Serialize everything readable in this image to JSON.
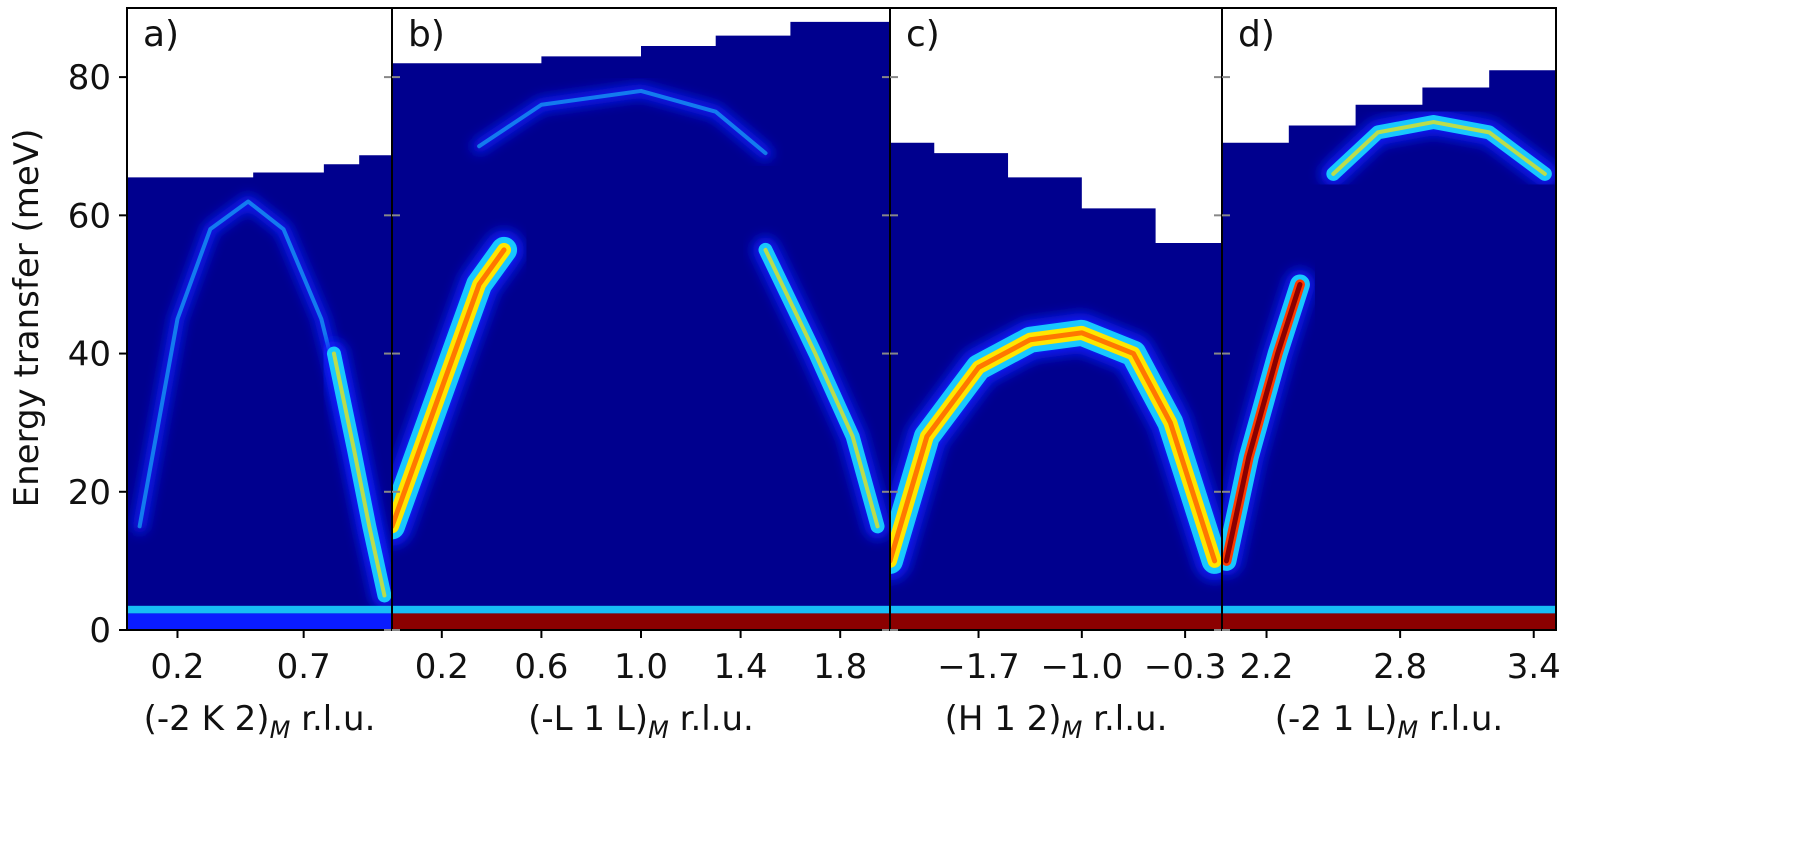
{
  "chart_data": {
    "type": "heatmap",
    "ylabel": "Energy transfer (meV)",
    "ylim": [
      0,
      90
    ],
    "yticks": [
      "0",
      "20",
      "40",
      "60",
      "80"
    ],
    "ytick_values": [
      0,
      20,
      40,
      60,
      80
    ],
    "colors": {
      "background": "#00008e",
      "low": "#0a1cff",
      "mid": "#19d2ff",
      "high": "#ffe600",
      "max": "#8b0000"
    },
    "panels": [
      {
        "label": "a)",
        "xlabel": "(-2 K 2)",
        "xlabel_sub": "M",
        "xlabel_unit": " r.l.u.",
        "xlim": [
          0.0,
          1.05
        ],
        "xticks": [
          "0.2",
          "0.7"
        ],
        "xtick_values": [
          0.2,
          0.7
        ],
        "coverage": [
          [
            0.0,
            65.5
          ],
          [
            0.2,
            65.5
          ],
          [
            0.5,
            66.2
          ],
          [
            0.78,
            67.4
          ],
          [
            0.92,
            68.7
          ],
          [
            1.05,
            69.0
          ]
        ],
        "arcs": [
          {
            "points": [
              [
                0.05,
                15
              ],
              [
                0.2,
                45
              ],
              [
                0.33,
                58
              ],
              [
                0.48,
                62
              ],
              [
                0.62,
                58
              ],
              [
                0.77,
                45
              ],
              [
                0.9,
                26
              ],
              [
                1.0,
                10
              ]
            ],
            "intensity": "low"
          },
          {
            "points": [
              [
                0.82,
                40
              ],
              [
                0.9,
                26
              ],
              [
                0.96,
                15
              ],
              [
                1.02,
                5
              ]
            ],
            "intensity": "mid"
          }
        ]
      },
      {
        "label": "b)",
        "xlabel": "(-L 1 L)",
        "xlabel_sub": "M",
        "xlabel_unit": " r.l.u.",
        "xlim": [
          0.0,
          2.0
        ],
        "xticks": [
          "0.2",
          "0.6",
          "1.0",
          "1.4",
          "1.8"
        ],
        "xtick_values": [
          0.2,
          0.6,
          1.0,
          1.4,
          1.8
        ],
        "coverage": [
          [
            0.0,
            82
          ],
          [
            0.3,
            82
          ],
          [
            0.6,
            83
          ],
          [
            1.0,
            84.5
          ],
          [
            1.3,
            86
          ],
          [
            1.6,
            88
          ],
          [
            2.0,
            89
          ]
        ],
        "arcs": [
          {
            "points": [
              [
                0.0,
                15
              ],
              [
                0.2,
                35
              ],
              [
                0.35,
                50
              ],
              [
                0.45,
                55
              ]
            ],
            "intensity": "high"
          },
          {
            "points": [
              [
                0.35,
                70
              ],
              [
                0.6,
                76
              ],
              [
                1.0,
                78
              ],
              [
                1.3,
                75
              ],
              [
                1.5,
                69
              ]
            ],
            "intensity": "low"
          },
          {
            "points": [
              [
                1.5,
                55
              ],
              [
                1.7,
                40
              ],
              [
                1.85,
                28
              ],
              [
                1.95,
                15
              ]
            ],
            "intensity": "mid"
          }
        ]
      },
      {
        "label": "c)",
        "xlabel": "(H 1 2)",
        "xlabel_sub": "M",
        "xlabel_unit": " r.l.u.",
        "xlim": [
          -2.3,
          -0.05
        ],
        "xticks": [
          "−1.7",
          "−1.0",
          "−0.3"
        ],
        "xtick_values": [
          -1.7,
          -1.0,
          -0.3
        ],
        "coverage": [
          [
            -2.3,
            70.5
          ],
          [
            -2.0,
            69
          ],
          [
            -1.5,
            65.5
          ],
          [
            -1.0,
            61
          ],
          [
            -0.5,
            56
          ],
          [
            -0.05,
            52
          ]
        ],
        "arcs": [
          {
            "points": [
              [
                -2.3,
                10
              ],
              [
                -2.05,
                28
              ],
              [
                -1.7,
                38
              ],
              [
                -1.35,
                42
              ],
              [
                -1.0,
                43
              ],
              [
                -0.65,
                40
              ],
              [
                -0.4,
                30
              ],
              [
                -0.1,
                10
              ]
            ],
            "intensity": "high"
          }
        ]
      },
      {
        "label": "d)",
        "xlabel": "(-2 1 L)",
        "xlabel_sub": "M",
        "xlabel_unit": " r.l.u.",
        "xlim": [
          2.0,
          3.5
        ],
        "xticks": [
          "2.2",
          "2.8",
          "3.4"
        ],
        "xtick_values": [
          2.2,
          2.8,
          3.4
        ],
        "coverage": [
          [
            2.0,
            70.5
          ],
          [
            2.3,
            73
          ],
          [
            2.6,
            76
          ],
          [
            2.9,
            78.5
          ],
          [
            3.2,
            81
          ],
          [
            3.5,
            83
          ]
        ],
        "arcs": [
          {
            "points": [
              [
                2.02,
                10
              ],
              [
                2.12,
                25
              ],
              [
                2.25,
                40
              ],
              [
                2.35,
                50
              ]
            ],
            "intensity": "max"
          },
          {
            "points": [
              [
                2.5,
                66
              ],
              [
                2.7,
                72
              ],
              [
                2.95,
                73.5
              ],
              [
                3.2,
                72
              ],
              [
                3.45,
                66
              ]
            ],
            "intensity": "mid"
          }
        ]
      }
    ]
  }
}
